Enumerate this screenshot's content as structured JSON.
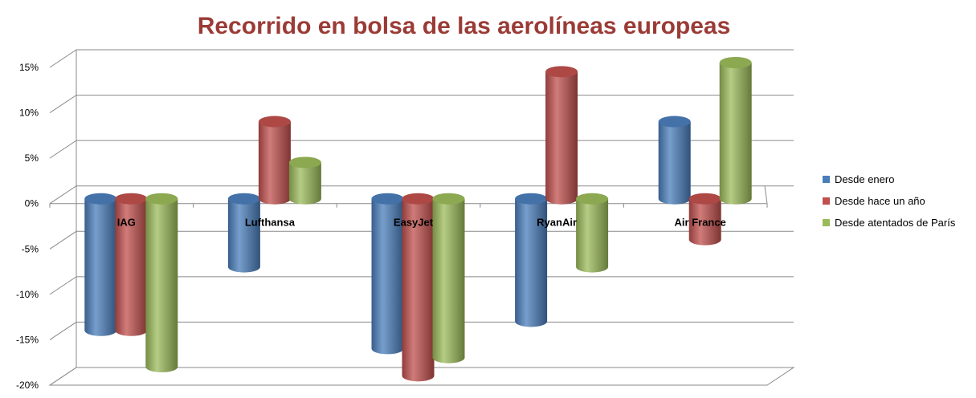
{
  "chart_data": {
    "type": "bar",
    "title": "Recorrido en bolsa de las aerolíneas europeas",
    "categories": [
      "IAG",
      "Lufthansa",
      "EasyJet",
      "RyanAir",
      "Air France"
    ],
    "series": [
      {
        "name": "Desde enero",
        "color": "#4a7ebb",
        "values": [
          -14.5,
          -7.5,
          -16.5,
          -13.5,
          8.5
        ]
      },
      {
        "name": "Desde hace un año",
        "color": "#c0504d",
        "values": [
          -14.5,
          8.5,
          -19.5,
          14.0,
          -4.5
        ]
      },
      {
        "name": "Desde atentados de París",
        "color": "#9bbb59",
        "values": [
          -18.5,
          4.0,
          -17.5,
          -7.5,
          15.0
        ]
      }
    ],
    "ylim": [
      -20,
      15
    ],
    "yticks": [
      15,
      10,
      5,
      0,
      -5,
      -10,
      -15,
      -20
    ],
    "ytick_labels": [
      "15%",
      "10%",
      "5%",
      "0%",
      "-5%",
      "-10%",
      "-15%",
      "-20%"
    ],
    "grid": true,
    "legend_position": "right",
    "xlabel": "",
    "ylabel": ""
  }
}
